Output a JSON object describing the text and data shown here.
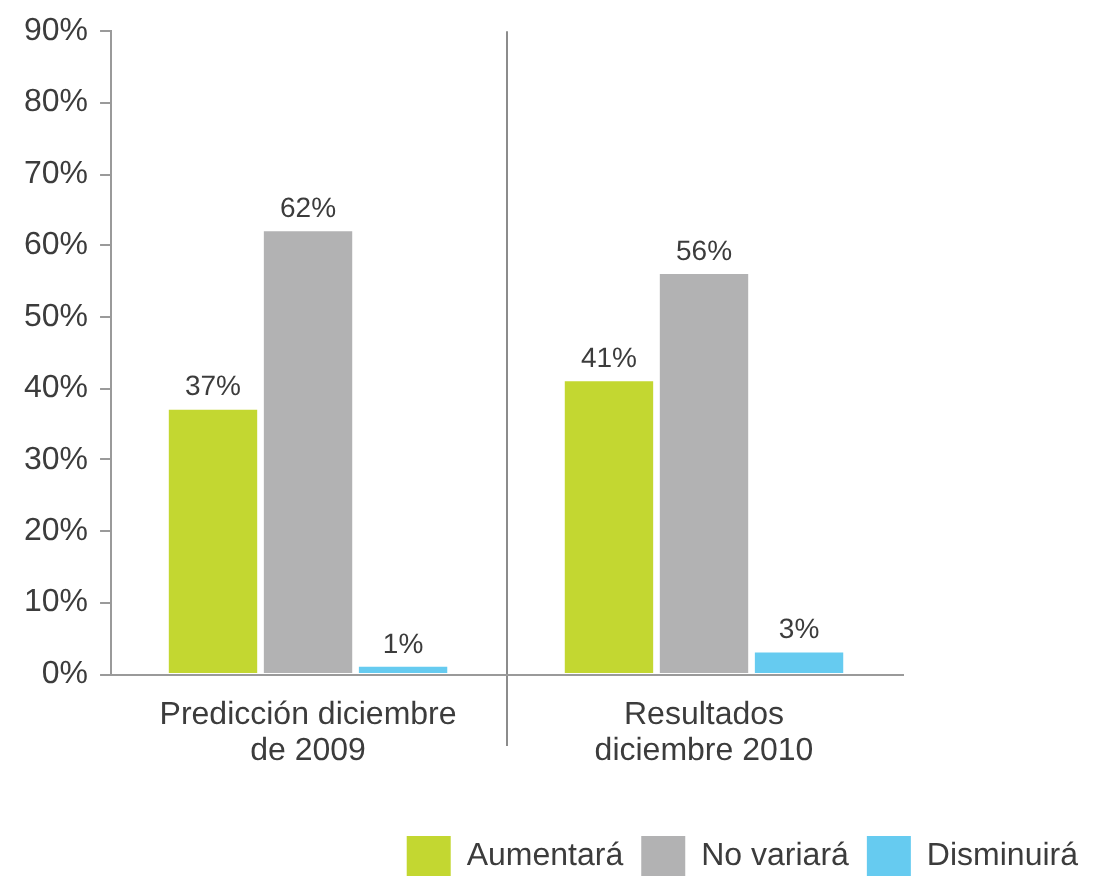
{
  "chart_data": {
    "type": "bar",
    "categories": [
      "Predicción diciembre\nde 2009",
      "Resultados\ndiciembre 2010"
    ],
    "series": [
      {
        "name": "Aumentará",
        "color": "#c3d731",
        "values": [
          37,
          41
        ],
        "value_labels": [
          "37%",
          "41%"
        ]
      },
      {
        "name": "No variará",
        "color": "#b2b2b3",
        "values": [
          62,
          56
        ],
        "value_labels": [
          "62%",
          "56%"
        ]
      },
      {
        "name": "Disminuirá",
        "color": "#66cbf0",
        "values": [
          1,
          3
        ],
        "value_labels": [
          "1%",
          "3%"
        ]
      }
    ],
    "ylim": [
      0,
      90
    ],
    "yticks": [
      {
        "value": 0,
        "label": "0%"
      },
      {
        "value": 10,
        "label": "10%"
      },
      {
        "value": 20,
        "label": "20%"
      },
      {
        "value": 30,
        "label": "30%"
      },
      {
        "value": 40,
        "label": "40%"
      },
      {
        "value": 50,
        "label": "50%"
      },
      {
        "value": 60,
        "label": "60%"
      },
      {
        "value": 70,
        "label": "70%"
      },
      {
        "value": 80,
        "label": "80%"
      },
      {
        "value": 90,
        "label": "90%"
      }
    ],
    "grid": "x",
    "legend": "bottom right"
  }
}
